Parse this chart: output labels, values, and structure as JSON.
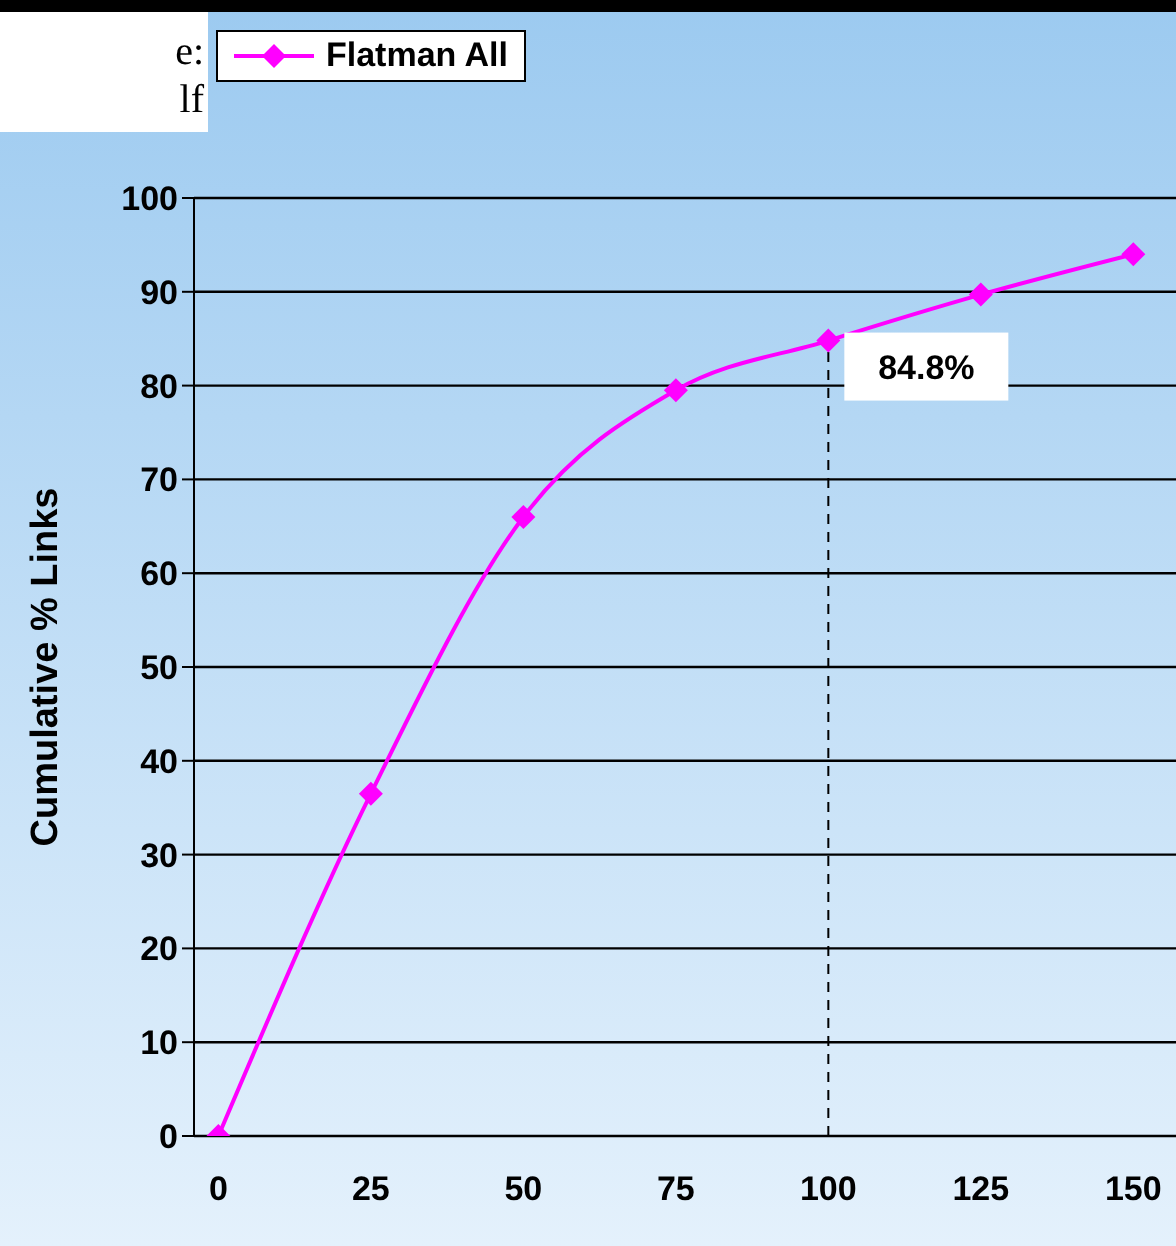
{
  "chart_data": {
    "type": "line",
    "ylabel": "Cumulative % Links",
    "x": [
      0,
      25,
      50,
      75,
      100,
      125,
      150
    ],
    "series": [
      {
        "name": "Flatman All",
        "color": "#ff00ff",
        "values": [
          0,
          36.5,
          66,
          79.5,
          84.8,
          89.7,
          94
        ]
      }
    ],
    "xlim": [
      -4,
      157
    ],
    "xticks": [
      0,
      25,
      50,
      75,
      100,
      125,
      150
    ],
    "ylim": [
      0,
      100
    ],
    "yticks": [
      0,
      10,
      20,
      30,
      40,
      50,
      60,
      70,
      80,
      90,
      100
    ],
    "grid": "y",
    "legend": "top left",
    "marker": "diamond",
    "line_style": "solid",
    "ref_lines": [
      {
        "axis": "x",
        "value": 100,
        "line_style": "dashed",
        "color": "#000000"
      }
    ],
    "annotations": [
      "e:",
      "lf",
      {
        "text": "84.8%",
        "x": 100,
        "y": 84.8
      }
    ]
  }
}
